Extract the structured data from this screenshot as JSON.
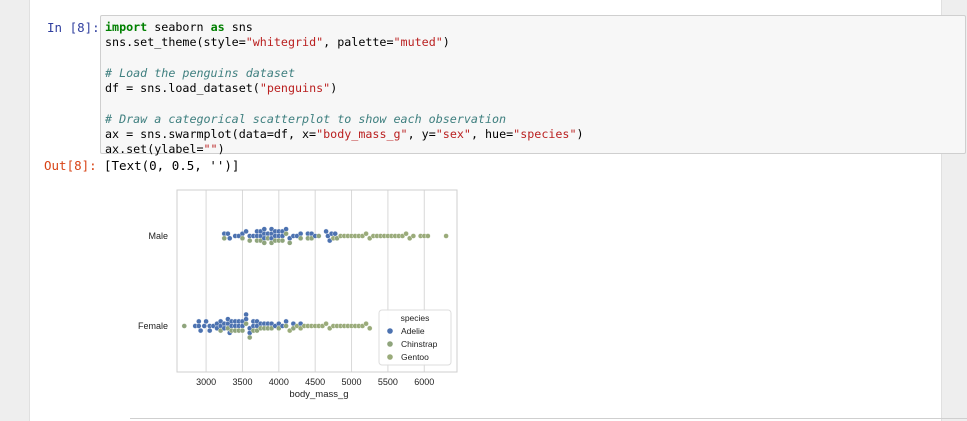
{
  "cell": {
    "in_prompt": "In [8]:",
    "out_prompt": "Out[8]:",
    "code_lines": [
      {
        "kw": "import",
        "rest": " seaborn ",
        "kw2": "as",
        "rest2": " sns"
      },
      "sns.set_theme(style=\"whitegrid\", palette=\"muted\")",
      "",
      "# Load the penguins dataset",
      "df = sns.load_dataset(\"penguins\")",
      "",
      "# Draw a categorical scatterplot to show each observation",
      "ax = sns.swarmplot(data=df, x=\"body_mass_g\", y=\"sex\", hue=\"species\")",
      "ax.set(ylabel=\"\")"
    ],
    "output_text": "[Text(0, 0.5, '')]"
  },
  "chart_data": {
    "type": "scatter",
    "subtype": "swarm",
    "title": "",
    "xlabel": "body_mass_g",
    "ylabel": "",
    "xlim": [
      2600,
      6450
    ],
    "xticks": [
      3000,
      3500,
      4000,
      4500,
      5000,
      5500,
      6000
    ],
    "categories": [
      "Male",
      "Female"
    ],
    "grid": true,
    "legend": {
      "title": "species",
      "placement": "lower-right"
    },
    "colors": {
      "Adelie": "#4c72b0",
      "Chinstrap": "#8fa47c",
      "Gentoo": "#9aab7a"
    },
    "series": [
      {
        "name": "Adelie",
        "points": [
          {
            "sex": "Male",
            "x": [
              3250,
              3300,
              3325,
              3400,
              3450,
              3500,
              3550,
              3600,
              3650,
              3700,
              3700,
              3750,
              3750,
              3800,
              3800,
              3800,
              3850,
              3900,
              3900,
              3900,
              3950,
              3950,
              4000,
              4000,
              4050,
              4050,
              4100,
              4150,
              4200,
              4250,
              4300,
              4400,
              4450,
              4500,
              4650,
              4675,
              4700,
              4725,
              4775
            ]
          },
          {
            "sex": "Female",
            "x": [
              2850,
              2900,
              2900,
              2925,
              2975,
              3000,
              3050,
              3050,
              3100,
              3150,
              3150,
              3200,
              3200,
              3250,
              3250,
              3300,
              3300,
              3325,
              3350,
              3350,
              3400,
              3400,
              3450,
              3450,
              3500,
              3500,
              3550,
              3550,
              3600,
              3600,
              3650,
              3650,
              3700,
              3700,
              3750,
              3800,
              3850,
              3900,
              3950,
              4000,
              4050,
              4100,
              4200,
              4300
            ]
          }
        ]
      },
      {
        "name": "Chinstrap",
        "points": [
          {
            "sex": "Male",
            "x": [
              3250,
              3500,
              3600,
              3700,
              3750,
              3800,
              3850,
              3900,
              3950,
              4000,
              4050,
              4100,
              4150,
              4300,
              4400,
              4450,
              4550,
              4800
            ]
          },
          {
            "sex": "Female",
            "x": [
              2700,
              3200,
              3300,
              3350,
              3400,
              3450,
              3500,
              3550,
              3600,
              3650,
              3700,
              3750,
              3800,
              3850,
              3900,
              4000,
              4100,
              4200
            ]
          }
        ]
      },
      {
        "name": "Gentoo",
        "points": [
          {
            "sex": "Male",
            "x": [
              4750,
              4850,
              4900,
              4950,
              5000,
              5050,
              5100,
              5150,
              5200,
              5250,
              5300,
              5350,
              5400,
              5450,
              5500,
              5550,
              5600,
              5650,
              5700,
              5750,
              5800,
              5850,
              5950,
              6000,
              6050,
              6300
            ]
          },
          {
            "sex": "Female",
            "x": [
              4150,
              4250,
              4300,
              4350,
              4400,
              4450,
              4500,
              4550,
              4600,
              4650,
              4700,
              4750,
              4800,
              4850,
              4900,
              4950,
              5000,
              5050,
              5100,
              5150,
              5200,
              5250
            ]
          }
        ]
      }
    ]
  }
}
